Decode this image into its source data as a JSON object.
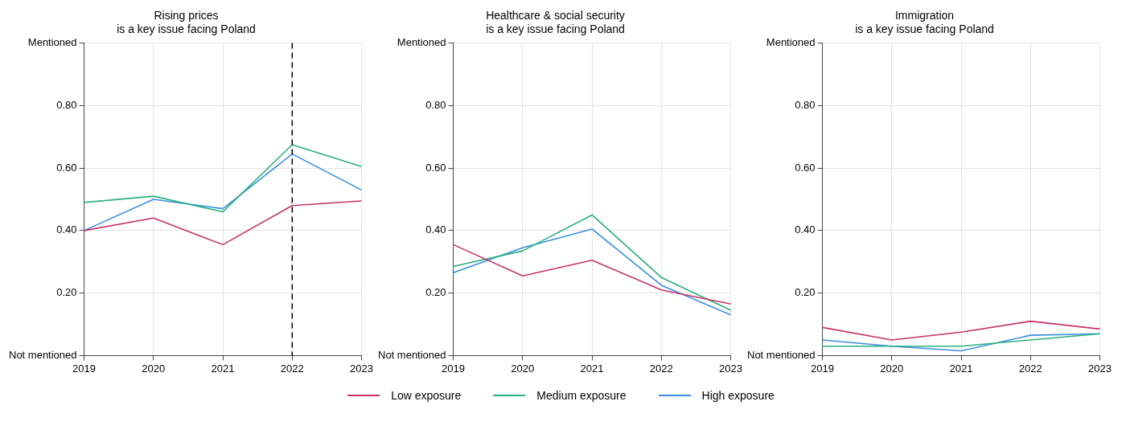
{
  "chart_data": [
    {
      "type": "line",
      "title": "Rising prices\nis a key issue facing Poland",
      "categories": [
        "2019",
        "2020",
        "2021",
        "2022",
        "2023"
      ],
      "ylim": [
        0,
        1
      ],
      "yticks": [
        {
          "value": 0,
          "label": "Not mentioned"
        },
        {
          "value": 0.2,
          "label": "0.20"
        },
        {
          "value": 0.4,
          "label": "0.40"
        },
        {
          "value": 0.6,
          "label": "0.60"
        },
        {
          "value": 0.8,
          "label": "0.80"
        },
        {
          "value": 1,
          "label": "Mentioned"
        }
      ],
      "grid": true,
      "legend": "bottom",
      "marker": "none",
      "line_style": "solid",
      "ref_lines": [
        {
          "axis": "x",
          "value": "2022",
          "color": "#000000",
          "line_style": "dashed"
        }
      ],
      "series": [
        {
          "name": "Low exposure",
          "color": "#c8336b",
          "values": [
            0.4,
            0.44,
            0.355,
            0.48,
            0.495
          ]
        },
        {
          "name": "Medium exposure",
          "color": "#2ab07f",
          "values": [
            0.49,
            0.51,
            0.46,
            0.675,
            0.605
          ]
        },
        {
          "name": "High exposure",
          "color": "#3a8fe0",
          "values": [
            0.4,
            0.5,
            0.47,
            0.645,
            0.53
          ]
        }
      ]
    },
    {
      "type": "line",
      "title": "Healthcare & social security\nis a key issue facing Poland",
      "categories": [
        "2019",
        "2020",
        "2021",
        "2022",
        "2023"
      ],
      "ylim": [
        0,
        1
      ],
      "yticks": [
        {
          "value": 0,
          "label": "Not mentioned"
        },
        {
          "value": 0.2,
          "label": "0.20"
        },
        {
          "value": 0.4,
          "label": "0.40"
        },
        {
          "value": 0.6,
          "label": "0.60"
        },
        {
          "value": 0.8,
          "label": "0.80"
        },
        {
          "value": 1,
          "label": "Mentioned"
        }
      ],
      "grid": true,
      "marker": "none",
      "line_style": "solid",
      "series": [
        {
          "color": "#c8336b",
          "values": [
            0.355,
            0.255,
            0.305,
            0.21,
            0.165
          ]
        },
        {
          "color": "#2ab07f",
          "values": [
            0.285,
            0.335,
            0.45,
            0.25,
            0.145
          ]
        },
        {
          "color": "#3a8fe0",
          "values": [
            0.265,
            0.345,
            0.405,
            0.225,
            0.13
          ]
        }
      ]
    },
    {
      "type": "line",
      "title": "Immigration\nis a key issue facing Poland",
      "categories": [
        "2019",
        "2020",
        "2021",
        "2022",
        "2023"
      ],
      "ylim": [
        0,
        1
      ],
      "yticks": [
        {
          "value": 0,
          "label": "Not mentioned"
        },
        {
          "value": 0.2,
          "label": "0.20"
        },
        {
          "value": 0.4,
          "label": "0.40"
        },
        {
          "value": 0.6,
          "label": "0.60"
        },
        {
          "value": 0.8,
          "label": "0.80"
        },
        {
          "value": 1,
          "label": "Mentioned"
        }
      ],
      "grid": true,
      "marker": "none",
      "line_style": "solid",
      "series": [
        {
          "color": "#c8336b",
          "values": [
            0.09,
            0.05,
            0.075,
            0.11,
            0.085
          ]
        },
        {
          "color": "#2ab07f",
          "values": [
            0.03,
            0.03,
            0.03,
            0.05,
            0.07
          ]
        },
        {
          "color": "#3a8fe0",
          "values": [
            0.05,
            0.03,
            0.015,
            0.065,
            0.07
          ]
        }
      ]
    }
  ]
}
